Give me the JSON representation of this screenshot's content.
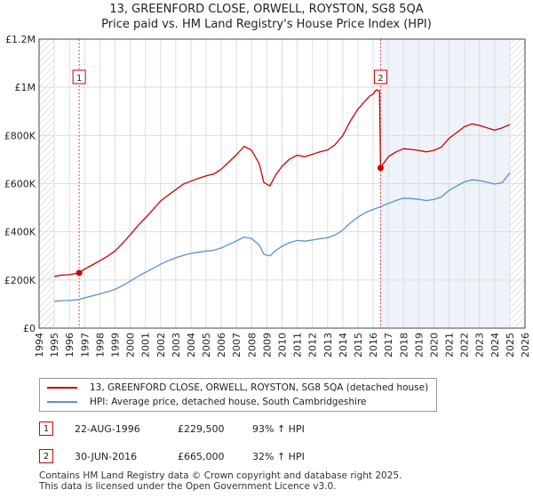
{
  "chart_data": {
    "type": "line",
    "title": "13, GREENFORD CLOSE, ORWELL, ROYSTON, SG8 5QA",
    "subtitle": "Price paid vs. HM Land Registry's House Price Index (HPI)",
    "xlabel": "",
    "ylabel": "",
    "xlim": [
      1994,
      2026
    ],
    "ylim": [
      0,
      1200000
    ],
    "x_ticks": [
      "1994",
      "1995",
      "1996",
      "1997",
      "1998",
      "1999",
      "2000",
      "2001",
      "2002",
      "2003",
      "2004",
      "2005",
      "2006",
      "2007",
      "2008",
      "2009",
      "2010",
      "2011",
      "2012",
      "2013",
      "2014",
      "2015",
      "2016",
      "2017",
      "2018",
      "2019",
      "2020",
      "2021",
      "2022",
      "2023",
      "2024",
      "2025",
      "2026"
    ],
    "y_ticks": [
      {
        "value": 0,
        "label": "£0"
      },
      {
        "value": 200000,
        "label": "£200K"
      },
      {
        "value": 400000,
        "label": "£400K"
      },
      {
        "value": 600000,
        "label": "£600K"
      },
      {
        "value": 800000,
        "label": "£800K"
      },
      {
        "value": 1000000,
        "label": "£1M"
      },
      {
        "value": 1200000,
        "label": "£1.2M"
      }
    ],
    "data_range": [
      1995.0,
      2025.0
    ],
    "series": [
      {
        "name": "13, GREENFORD CLOSE, ORWELL, ROYSTON, SG8 5QA (detached house)",
        "color": "#cc0000",
        "x": [
          1995.0,
          1995.5,
          1996.0,
          1996.64,
          1997.0,
          1997.5,
          1998.0,
          1998.5,
          1999.0,
          1999.5,
          2000.0,
          2000.5,
          2001.0,
          2001.5,
          2002.0,
          2002.5,
          2003.0,
          2003.5,
          2004.0,
          2004.5,
          2005.0,
          2005.5,
          2006.0,
          2006.5,
          2007.0,
          2007.5,
          2008.0,
          2008.5,
          2008.8,
          2009.2,
          2009.6,
          2010.0,
          2010.5,
          2011.0,
          2011.5,
          2012.0,
          2012.5,
          2013.0,
          2013.5,
          2014.0,
          2014.5,
          2015.0,
          2015.5,
          2015.8,
          2016.0,
          2016.2,
          2016.42,
          2016.49,
          2016.7,
          2017.0,
          2017.5,
          2018.0,
          2018.5,
          2019.0,
          2019.5,
          2020.0,
          2020.5,
          2021.0,
          2021.5,
          2022.0,
          2022.5,
          2023.0,
          2023.5,
          2024.0,
          2024.5,
          2025.0
        ],
        "values": [
          215000,
          220000,
          222000,
          229500,
          245000,
          262000,
          280000,
          298000,
          320000,
          352000,
          388000,
          425000,
          458000,
          492000,
          528000,
          552000,
          575000,
          598000,
          610000,
          622000,
          632000,
          640000,
          660000,
          690000,
          720000,
          755000,
          738000,
          682000,
          605000,
          590000,
          638000,
          672000,
          702000,
          718000,
          712000,
          722000,
          732000,
          740000,
          762000,
          800000,
          860000,
          910000,
          945000,
          965000,
          972000,
          990000,
          985000,
          665000,
          685000,
          712000,
          732000,
          745000,
          742000,
          738000,
          732000,
          738000,
          752000,
          788000,
          812000,
          836000,
          848000,
          842000,
          832000,
          822000,
          832000,
          845000
        ]
      },
      {
        "name": "HPI: Average price, detached house, South Cambridgeshire",
        "color": "#5b8fd1",
        "x": [
          1995.0,
          1995.5,
          1996.0,
          1996.64,
          1997.0,
          1997.5,
          1998.0,
          1998.5,
          1999.0,
          1999.5,
          2000.0,
          2000.5,
          2001.0,
          2001.5,
          2002.0,
          2002.5,
          2003.0,
          2003.5,
          2004.0,
          2004.5,
          2005.0,
          2005.5,
          2006.0,
          2006.5,
          2007.0,
          2007.5,
          2008.0,
          2008.5,
          2008.8,
          2009.2,
          2009.6,
          2010.0,
          2010.5,
          2011.0,
          2011.5,
          2012.0,
          2012.5,
          2013.0,
          2013.5,
          2014.0,
          2014.5,
          2015.0,
          2015.5,
          2016.0,
          2016.49,
          2017.0,
          2017.5,
          2018.0,
          2018.5,
          2019.0,
          2019.5,
          2020.0,
          2020.5,
          2021.0,
          2021.5,
          2022.0,
          2022.5,
          2023.0,
          2023.5,
          2024.0,
          2024.5,
          2025.0
        ],
        "values": [
          112000,
          114000,
          115000,
          119000,
          126000,
          134000,
          142000,
          151000,
          161000,
          177000,
          195000,
          214000,
          232000,
          248000,
          265000,
          280000,
          292000,
          302000,
          310000,
          315000,
          320000,
          323000,
          333000,
          348000,
          362000,
          378000,
          372000,
          345000,
          307000,
          300000,
          323000,
          340000,
          355000,
          364000,
          361000,
          366000,
          371000,
          375000,
          387000,
          407000,
          437000,
          461000,
          480000,
          493000,
          504000,
          518000,
          530000,
          540000,
          538000,
          535000,
          530000,
          534000,
          545000,
          572000,
          590000,
          607000,
          616000,
          613000,
          606000,
          598000,
          604000,
          645000
        ]
      }
    ],
    "sales": [
      {
        "label": "1",
        "x": 1996.64,
        "value": 229500
      },
      {
        "label": "2",
        "x": 2016.49,
        "value": 665000
      }
    ],
    "annotations": [
      {
        "label": "1",
        "x": 1996.64
      },
      {
        "label": "2",
        "x": 2016.49
      }
    ],
    "legend": {
      "placement": "below"
    }
  },
  "legend": {
    "items": [
      {
        "label": "13, GREENFORD CLOSE, ORWELL, ROYSTON, SG8 5QA (detached house)",
        "color": "#cc0000"
      },
      {
        "label": "HPI: Average price, detached house, South Cambridgeshire",
        "color": "#5b8fd1"
      }
    ]
  },
  "sales_table": [
    {
      "num": "1",
      "date": "22-AUG-1996",
      "price": "£229,500",
      "hpi": "93% ↑ HPI"
    },
    {
      "num": "2",
      "date": "30-JUN-2016",
      "price": "£665,000",
      "hpi": "32% ↑ HPI"
    }
  ],
  "footer": {
    "line1": "Contains HM Land Registry data © Crown copyright and database right 2025.",
    "line2": "This data is licensed under the Open Government Licence v3.0."
  },
  "colors": {
    "hatch": "#cccccc",
    "highlight": "#eef2f9",
    "grid": "#dddddd",
    "marker": "#cc0000"
  }
}
